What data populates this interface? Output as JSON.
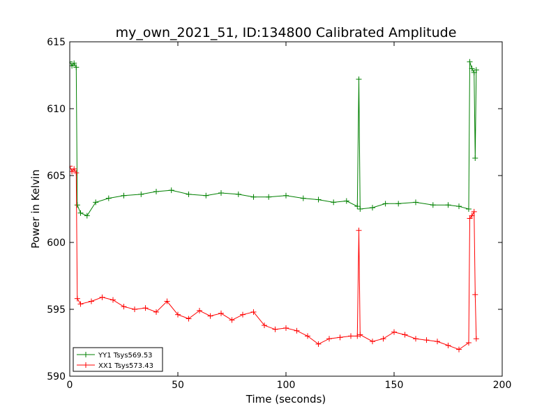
{
  "chart_data": {
    "type": "line",
    "title": "my_own_2021_51, ID:134800 Calibrated Amplitude",
    "xlabel": "Time (seconds)",
    "ylabel": "Power in Kelvin",
    "xlim": [
      0,
      200
    ],
    "ylim": [
      590,
      615
    ],
    "xticks": [
      0,
      50,
      100,
      150,
      200
    ],
    "yticks": [
      590,
      595,
      600,
      605,
      610,
      615
    ],
    "grid": false,
    "legend_position": "lower-left",
    "marker": "+",
    "series": [
      {
        "name": "YY1 Tsys569.53",
        "color": "#008000",
        "x": [
          0,
          1,
          2,
          3,
          3.5,
          5,
          8,
          12,
          18,
          25,
          33,
          40,
          47,
          55,
          63,
          70,
          78,
          85,
          92,
          100,
          108,
          115,
          122,
          128,
          133,
          133.7,
          134.3,
          140,
          146,
          152,
          160,
          168,
          175,
          180,
          184.5,
          185,
          186,
          187,
          187.5,
          188
        ],
        "y": [
          613.5,
          613.2,
          613.4,
          613.1,
          602.8,
          602.2,
          602.0,
          603.0,
          603.3,
          603.5,
          603.6,
          603.8,
          603.9,
          603.6,
          603.5,
          603.7,
          603.6,
          603.4,
          603.4,
          603.5,
          603.3,
          603.2,
          603.0,
          603.1,
          602.7,
          612.2,
          602.5,
          602.6,
          602.9,
          602.9,
          603.0,
          602.8,
          602.8,
          602.7,
          602.5,
          613.5,
          613.0,
          612.7,
          606.3,
          612.9
        ]
      },
      {
        "name": "XX1 Tsys573.43",
        "color": "#ff0000",
        "x": [
          0,
          1,
          2,
          3,
          3.5,
          5,
          10,
          15,
          20,
          25,
          30,
          35,
          40,
          45,
          50,
          55,
          60,
          65,
          70,
          75,
          80,
          85,
          90,
          95,
          100,
          105,
          110,
          115,
          120,
          125,
          130,
          133,
          133.7,
          134.3,
          140,
          145,
          150,
          155,
          160,
          165,
          170,
          175,
          180,
          184.5,
          185,
          186,
          187,
          187.5,
          188
        ],
        "y": [
          605.7,
          605.3,
          605.5,
          605.2,
          595.8,
          595.4,
          595.6,
          595.9,
          595.7,
          595.2,
          595.0,
          595.1,
          594.8,
          595.6,
          594.6,
          594.3,
          594.9,
          594.5,
          594.7,
          594.2,
          594.6,
          594.8,
          593.8,
          593.5,
          593.6,
          593.4,
          593.0,
          592.4,
          592.8,
          592.9,
          593.0,
          593.0,
          600.9,
          593.1,
          592.6,
          592.8,
          593.3,
          593.1,
          592.8,
          592.7,
          592.6,
          592.3,
          592.0,
          592.5,
          601.8,
          602.0,
          602.3,
          596.1,
          592.8
        ]
      }
    ]
  }
}
